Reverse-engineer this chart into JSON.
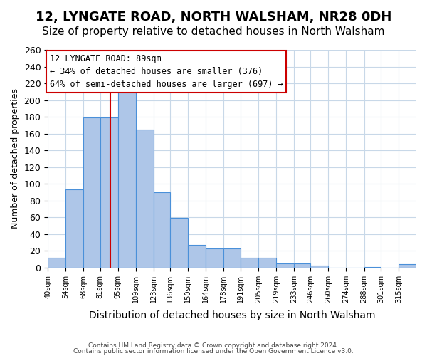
{
  "title": "12, LYNGATE ROAD, NORTH WALSHAM, NR28 0DH",
  "subtitle": "Size of property relative to detached houses in North Walsham",
  "xlabel": "Distribution of detached houses by size in North Walsham",
  "ylabel": "Number of detached properties",
  "footer1": "Contains HM Land Registry data © Crown copyright and database right 2024.",
  "footer2": "Contains public sector information licensed under the Open Government Licence v3.0.",
  "bin_labels": [
    "40sqm",
    "54sqm",
    "68sqm",
    "81sqm",
    "95sqm",
    "109sqm",
    "123sqm",
    "136sqm",
    "150sqm",
    "164sqm",
    "178sqm",
    "191sqm",
    "205sqm",
    "219sqm",
    "233sqm",
    "246sqm",
    "260sqm",
    "274sqm",
    "288sqm",
    "301sqm",
    "315sqm"
  ],
  "bar_heights": [
    12,
    93,
    179,
    179,
    210,
    165,
    90,
    59,
    27,
    23,
    23,
    12,
    12,
    5,
    5,
    2,
    0,
    0,
    1,
    0,
    4
  ],
  "bar_color": "#aec6e8",
  "bar_edge_color": "#4a90d9",
  "property_line_x": 89,
  "bin_edges": [
    40,
    54,
    68,
    81,
    95,
    109,
    123,
    136,
    150,
    164,
    178,
    191,
    205,
    219,
    233,
    246,
    260,
    274,
    288,
    301,
    315,
    329
  ],
  "annotation_title": "12 LYNGATE ROAD: 89sqm",
  "annotation_line1": "← 34% of detached houses are smaller (376)",
  "annotation_line2": "64% of semi-detached houses are larger (697) →",
  "annotation_box_color": "#ffffff",
  "annotation_box_edge": "#cc0000",
  "property_line_color": "#cc0000",
  "ylim": [
    0,
    260
  ],
  "yticks": [
    0,
    20,
    40,
    60,
    80,
    100,
    120,
    140,
    160,
    180,
    200,
    220,
    240,
    260
  ],
  "background_color": "#ffffff",
  "grid_color": "#c8d8e8",
  "title_fontsize": 13,
  "subtitle_fontsize": 11
}
